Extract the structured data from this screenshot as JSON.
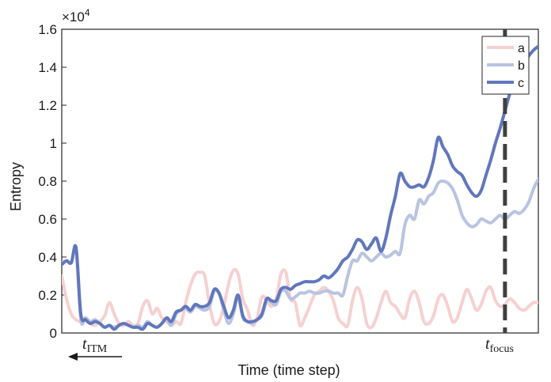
{
  "chart_data": {
    "type": "line",
    "title": "",
    "xlabel": "Time (time step)",
    "ylabel": "Entropy",
    "exponent_label": "×10",
    "exponent_power": "4",
    "xlim": [
      0,
      100
    ],
    "ylim": [
      0,
      1.6
    ],
    "yticks": [
      "0",
      "0.2",
      "0.4",
      "0.6",
      "0.8",
      "1",
      "1.2",
      "1.4",
      "1.6"
    ],
    "grid": false,
    "legend_position": "top-right",
    "series": [
      {
        "name": "a",
        "color": "#f6d0d0",
        "x": [
          0,
          1,
          2,
          3,
          4,
          5,
          6,
          7,
          8,
          9,
          10,
          11,
          12,
          13,
          14,
          15,
          16,
          17,
          18,
          19,
          20,
          21,
          22,
          23,
          24,
          25,
          26,
          27,
          28,
          29,
          30,
          31,
          32,
          33,
          34,
          35,
          36,
          37,
          38,
          39,
          40,
          41,
          42,
          43,
          44,
          45,
          46,
          47,
          48,
          49,
          50,
          51,
          52,
          53,
          54,
          55,
          56,
          57,
          58,
          59,
          60,
          61,
          62,
          63,
          64,
          65,
          66,
          67,
          68,
          69,
          70,
          71,
          72,
          73,
          74,
          75,
          76,
          77,
          78,
          79,
          80,
          81,
          82,
          83,
          84,
          85,
          86,
          87,
          88,
          89,
          90,
          91,
          92,
          93,
          94,
          95,
          96,
          97,
          98,
          99,
          100
        ],
        "y": [
          0.3,
          0.18,
          0.1,
          0.07,
          0.06,
          0.08,
          0.05,
          0.04,
          0.06,
          0.09,
          0.16,
          0.1,
          0.05,
          0.04,
          0.06,
          0.04,
          0.05,
          0.14,
          0.17,
          0.1,
          0.13,
          0.08,
          0.06,
          0.04,
          0.06,
          0.05,
          0.16,
          0.25,
          0.31,
          0.32,
          0.3,
          0.15,
          0.05,
          0.06,
          0.14,
          0.26,
          0.33,
          0.31,
          0.18,
          0.12,
          0.04,
          0.08,
          0.19,
          0.17,
          0.14,
          0.18,
          0.31,
          0.32,
          0.18,
          0.16,
          0.04,
          0.08,
          0.14,
          0.2,
          0.22,
          0.24,
          0.22,
          0.17,
          0.08,
          0.05,
          0.04,
          0.17,
          0.24,
          0.18,
          0.05,
          0.03,
          0.08,
          0.16,
          0.22,
          0.16,
          0.14,
          0.1,
          0.08,
          0.18,
          0.22,
          0.16,
          0.06,
          0.05,
          0.09,
          0.18,
          0.2,
          0.14,
          0.06,
          0.08,
          0.16,
          0.23,
          0.18,
          0.12,
          0.15,
          0.22,
          0.24,
          0.17,
          0.14,
          0.15,
          0.18,
          0.16,
          0.13,
          0.12,
          0.14,
          0.16,
          0.16
        ]
      },
      {
        "name": "b",
        "color": "#b9c3e2",
        "x": [
          0,
          1,
          2,
          3,
          4,
          5,
          6,
          7,
          8,
          9,
          10,
          11,
          12,
          13,
          14,
          15,
          16,
          17,
          18,
          19,
          20,
          21,
          22,
          23,
          24,
          25,
          26,
          27,
          28,
          29,
          30,
          31,
          32,
          33,
          34,
          35,
          36,
          37,
          38,
          39,
          40,
          41,
          42,
          43,
          44,
          45,
          46,
          47,
          48,
          49,
          50,
          51,
          52,
          53,
          54,
          55,
          56,
          57,
          58,
          59,
          60,
          61,
          62,
          63,
          64,
          65,
          66,
          67,
          68,
          69,
          70,
          71,
          72,
          73,
          74,
          75,
          76,
          77,
          78,
          79,
          80,
          81,
          82,
          83,
          84,
          85,
          86,
          87,
          88,
          89,
          90,
          91,
          92,
          93,
          94,
          95,
          96,
          97,
          98,
          99,
          100
        ],
        "y": [
          0.37,
          0.38,
          0.37,
          0.44,
          0.07,
          0.08,
          0.06,
          0.07,
          0.05,
          0.03,
          0.04,
          0.03,
          0.04,
          0.05,
          0.04,
          0.03,
          0.04,
          0.03,
          0.06,
          0.04,
          0.03,
          0.05,
          0.07,
          0.04,
          0.1,
          0.12,
          0.13,
          0.11,
          0.14,
          0.13,
          0.12,
          0.14,
          0.22,
          0.21,
          0.12,
          0.05,
          0.1,
          0.19,
          0.08,
          0.06,
          0.05,
          0.07,
          0.09,
          0.17,
          0.16,
          0.15,
          0.22,
          0.22,
          0.18,
          0.19,
          0.21,
          0.21,
          0.22,
          0.21,
          0.21,
          0.22,
          0.22,
          0.21,
          0.21,
          0.2,
          0.3,
          0.38,
          0.38,
          0.42,
          0.4,
          0.38,
          0.4,
          0.42,
          0.4,
          0.41,
          0.43,
          0.42,
          0.57,
          0.62,
          0.6,
          0.7,
          0.68,
          0.72,
          0.74,
          0.79,
          0.8,
          0.79,
          0.76,
          0.7,
          0.62,
          0.58,
          0.56,
          0.57,
          0.6,
          0.59,
          0.58,
          0.6,
          0.62,
          0.6,
          0.62,
          0.64,
          0.63,
          0.65,
          0.69,
          0.76,
          0.81
        ]
      },
      {
        "name": "c",
        "color": "#6177bc",
        "x": [
          0,
          1,
          2,
          3,
          4,
          5,
          6,
          7,
          8,
          9,
          10,
          11,
          12,
          13,
          14,
          15,
          16,
          17,
          18,
          19,
          20,
          21,
          22,
          23,
          24,
          25,
          26,
          27,
          28,
          29,
          30,
          31,
          32,
          33,
          34,
          35,
          36,
          37,
          38,
          39,
          40,
          41,
          42,
          43,
          44,
          45,
          46,
          47,
          48,
          49,
          50,
          51,
          52,
          53,
          54,
          55,
          56,
          57,
          58,
          59,
          60,
          61,
          62,
          63,
          64,
          65,
          66,
          67,
          68,
          69,
          70,
          71,
          72,
          73,
          74,
          75,
          76,
          77,
          78,
          79,
          80,
          81,
          82,
          83,
          84,
          85,
          86,
          87,
          88,
          89,
          90,
          91,
          92,
          93,
          94,
          95,
          96,
          97,
          98,
          99,
          100
        ],
        "y": [
          0.36,
          0.38,
          0.37,
          0.45,
          0.1,
          0.07,
          0.05,
          0.06,
          0.05,
          0.03,
          0.04,
          0.02,
          0.04,
          0.05,
          0.04,
          0.03,
          0.03,
          0.02,
          0.05,
          0.04,
          0.03,
          0.05,
          0.08,
          0.06,
          0.11,
          0.12,
          0.14,
          0.12,
          0.15,
          0.14,
          0.14,
          0.16,
          0.23,
          0.21,
          0.14,
          0.08,
          0.12,
          0.2,
          0.09,
          0.06,
          0.06,
          0.07,
          0.1,
          0.18,
          0.17,
          0.17,
          0.23,
          0.24,
          0.23,
          0.25,
          0.26,
          0.27,
          0.27,
          0.27,
          0.28,
          0.3,
          0.29,
          0.31,
          0.34,
          0.38,
          0.4,
          0.44,
          0.49,
          0.48,
          0.44,
          0.47,
          0.5,
          0.43,
          0.5,
          0.62,
          0.72,
          0.84,
          0.8,
          0.77,
          0.77,
          0.78,
          0.77,
          0.82,
          0.91,
          1.03,
          0.98,
          0.94,
          0.88,
          0.85,
          0.83,
          0.78,
          0.74,
          0.72,
          0.75,
          0.83,
          0.91,
          1.0,
          1.08,
          1.17,
          1.26,
          1.32,
          1.38,
          1.42,
          1.46,
          1.49,
          1.51
        ]
      }
    ],
    "annotations": {
      "t_itm_base": "t",
      "t_itm_sub": "ITM",
      "t_itm_arrow": "left",
      "t_focus_base": "t",
      "t_focus_sub": "focus",
      "t_focus_x": 93.0
    }
  }
}
